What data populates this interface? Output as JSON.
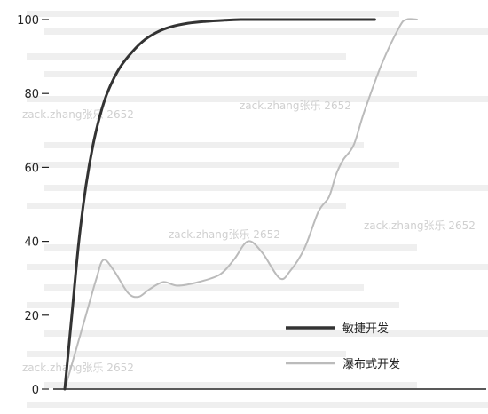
{
  "chart_data": {
    "type": "line",
    "title": "",
    "xlabel": "",
    "ylabel": "",
    "ylim": [
      0,
      100
    ],
    "yticks": [
      0,
      20,
      40,
      60,
      80,
      100
    ],
    "xlim": [
      0,
      100
    ],
    "grid": false,
    "legend_position": "bottom-right",
    "series": [
      {
        "name": "敏捷开发",
        "color": "#333333",
        "x": [
          0,
          2,
          4,
          6,
          8,
          10,
          12,
          15,
          18,
          22,
          26,
          30,
          35,
          40,
          45,
          50,
          60,
          70,
          80,
          88
        ],
        "values": [
          0,
          20,
          40,
          55,
          66,
          74,
          80,
          86,
          90,
          94,
          96.5,
          98,
          99,
          99.5,
          99.8,
          100,
          100,
          100,
          100,
          100
        ]
      },
      {
        "name": "瀑布式开发",
        "color": "#bbbbbb",
        "x": [
          0,
          3,
          6,
          9,
          11,
          14,
          18,
          21,
          24,
          28,
          32,
          38,
          44,
          48,
          52,
          56,
          61,
          64,
          68,
          72,
          75,
          77,
          79,
          82,
          85,
          90,
          95,
          97,
          100
        ],
        "values": [
          0,
          10,
          20,
          30,
          35,
          32,
          26,
          25,
          27,
          29,
          28,
          29,
          31,
          35,
          40,
          37,
          30,
          32,
          38,
          48,
          52,
          58,
          62,
          66,
          75,
          88,
          98,
          100,
          100
        ]
      }
    ]
  },
  "background_text": {
    "watermark": "zack.zhang张乐 2652"
  }
}
